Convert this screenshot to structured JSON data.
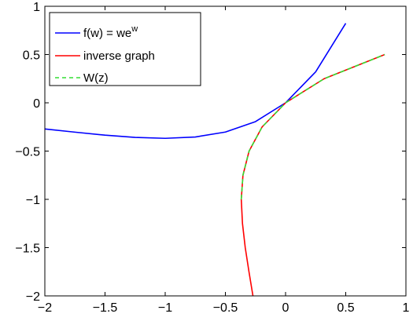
{
  "chart_data": {
    "type": "line",
    "title": "",
    "xlabel": "",
    "ylabel": "",
    "xlim": [
      -2,
      1
    ],
    "ylim": [
      -2,
      1
    ],
    "xticks": [
      -2,
      -1.5,
      -1,
      -0.5,
      0,
      0.5,
      1
    ],
    "yticks": [
      -2,
      -1.5,
      -1,
      -0.5,
      0,
      0.5,
      1
    ],
    "xtick_labels": [
      "−2",
      "−1.5",
      "−1",
      "−0.5",
      "0",
      "0.5",
      "1"
    ],
    "ytick_labels": [
      "−2",
      "−1.5",
      "−1",
      "−0.5",
      "0",
      "0.5",
      "1"
    ],
    "grid": false,
    "legend_position": "top-left",
    "series": [
      {
        "name": "f(w) = we",
        "name_sup": "w",
        "color": "#0000ff",
        "style": "solid",
        "x": [
          -2,
          -1.75,
          -1.5,
          -1.25,
          -1,
          -0.75,
          -0.5,
          -0.25,
          0,
          0.25,
          0.5
        ],
        "y": [
          -0.271,
          -0.304,
          -0.335,
          -0.358,
          -0.368,
          -0.354,
          -0.303,
          -0.195,
          0,
          0.321,
          0.824
        ]
      },
      {
        "name": "inverse graph",
        "color": "#ff0000",
        "style": "solid",
        "x": [
          -0.271,
          -0.304,
          -0.335,
          -0.358,
          -0.368,
          -0.354,
          -0.303,
          -0.195,
          0,
          0.321,
          0.824
        ],
        "y": [
          -2,
          -1.75,
          -1.5,
          -1.25,
          -1,
          -0.75,
          -0.5,
          -0.25,
          0,
          0.25,
          0.5
        ]
      },
      {
        "name": "W(z)",
        "color": "#33dd33",
        "style": "dashed",
        "x": [
          -0.368,
          -0.354,
          -0.303,
          -0.195,
          0,
          0.321,
          0.824
        ],
        "y": [
          -1,
          -0.75,
          -0.5,
          -0.25,
          0,
          0.25,
          0.5
        ]
      }
    ]
  }
}
